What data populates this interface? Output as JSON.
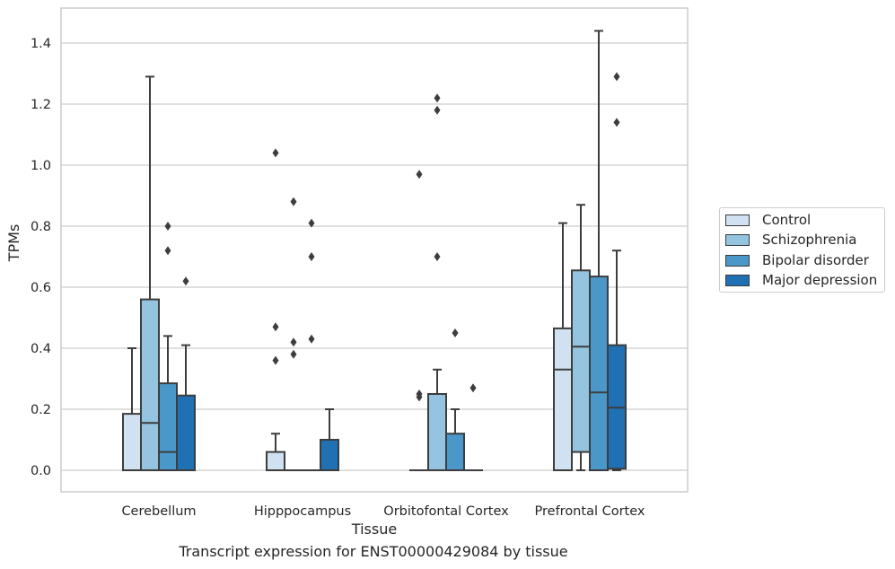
{
  "caption": "Transcript expression for ENST00000429084 by tissue",
  "chart_data": {
    "type": "box",
    "xlabel": "Tissue",
    "ylabel": "TPMs",
    "ylim": [
      -0.07,
      1.52
    ],
    "yticks": [
      "0.0",
      "0.2",
      "0.4",
      "0.6",
      "0.8",
      "1.0",
      "1.2",
      "1.4"
    ],
    "grid": true,
    "legend_position": "right",
    "categories": [
      "Cerebellum",
      "Hipppocampus",
      "Orbitofontal Cortex",
      "Prefrontal Cortex"
    ],
    "series": [
      {
        "name": "Control",
        "color": "#d0e1f2",
        "boxes": [
          {
            "q1": 0.0,
            "median": 0.0,
            "q3": 0.185,
            "wlow": 0.0,
            "whigh": 0.4,
            "outliers": []
          },
          {
            "q1": 0.0,
            "median": 0.0,
            "q3": 0.06,
            "wlow": 0.0,
            "whigh": 0.12,
            "outliers": [
              1.04,
              0.47,
              0.36
            ]
          },
          {
            "q1": 0.0,
            "median": 0.0,
            "q3": 0.0,
            "wlow": 0.0,
            "whigh": 0.0,
            "outliers": [
              0.97,
              0.25,
              0.24
            ]
          },
          {
            "q1": 0.0,
            "median": 0.33,
            "q3": 0.465,
            "wlow": 0.0,
            "whigh": 0.81,
            "outliers": []
          }
        ]
      },
      {
        "name": "Schizophrenia",
        "color": "#94c4df",
        "boxes": [
          {
            "q1": 0.0,
            "median": 0.155,
            "q3": 0.56,
            "wlow": 0.0,
            "whigh": 1.29,
            "outliers": []
          },
          {
            "q1": 0.0,
            "median": 0.0,
            "q3": 0.0,
            "wlow": 0.0,
            "whigh": 0.0,
            "outliers": [
              0.88,
              0.42,
              0.38
            ]
          },
          {
            "q1": 0.0,
            "median": 0.0,
            "q3": 0.25,
            "wlow": 0.0,
            "whigh": 0.33,
            "outliers": [
              1.22,
              1.18,
              0.7
            ]
          },
          {
            "q1": 0.06,
            "median": 0.405,
            "q3": 0.655,
            "wlow": 0.0,
            "whigh": 0.87,
            "outliers": []
          }
        ]
      },
      {
        "name": "Bipolar disorder",
        "color": "#4a98c9",
        "boxes": [
          {
            "q1": 0.0,
            "median": 0.06,
            "q3": 0.285,
            "wlow": 0.0,
            "whigh": 0.44,
            "outliers": [
              0.8,
              0.72
            ]
          },
          {
            "q1": 0.0,
            "median": 0.0,
            "q3": 0.0,
            "wlow": 0.0,
            "whigh": 0.0,
            "outliers": [
              0.81,
              0.7,
              0.43
            ]
          },
          {
            "q1": 0.0,
            "median": 0.0,
            "q3": 0.12,
            "wlow": 0.0,
            "whigh": 0.2,
            "outliers": [
              0.45
            ]
          },
          {
            "q1": 0.0,
            "median": 0.255,
            "q3": 0.635,
            "wlow": 0.0,
            "whigh": 1.44,
            "outliers": []
          }
        ]
      },
      {
        "name": "Major depression",
        "color": "#2070b4",
        "boxes": [
          {
            "q1": 0.0,
            "median": 0.0,
            "q3": 0.245,
            "wlow": 0.0,
            "whigh": 0.41,
            "outliers": [
              0.62
            ]
          },
          {
            "q1": 0.0,
            "median": 0.0,
            "q3": 0.1,
            "wlow": 0.0,
            "whigh": 0.2,
            "outliers": []
          },
          {
            "q1": 0.0,
            "median": 0.0,
            "q3": 0.0,
            "wlow": 0.0,
            "whigh": 0.0,
            "outliers": [
              0.27
            ]
          },
          {
            "q1": 0.005,
            "median": 0.205,
            "q3": 0.41,
            "wlow": 0.0,
            "whigh": 0.72,
            "outliers": [
              1.29,
              1.14
            ]
          }
        ]
      }
    ]
  }
}
